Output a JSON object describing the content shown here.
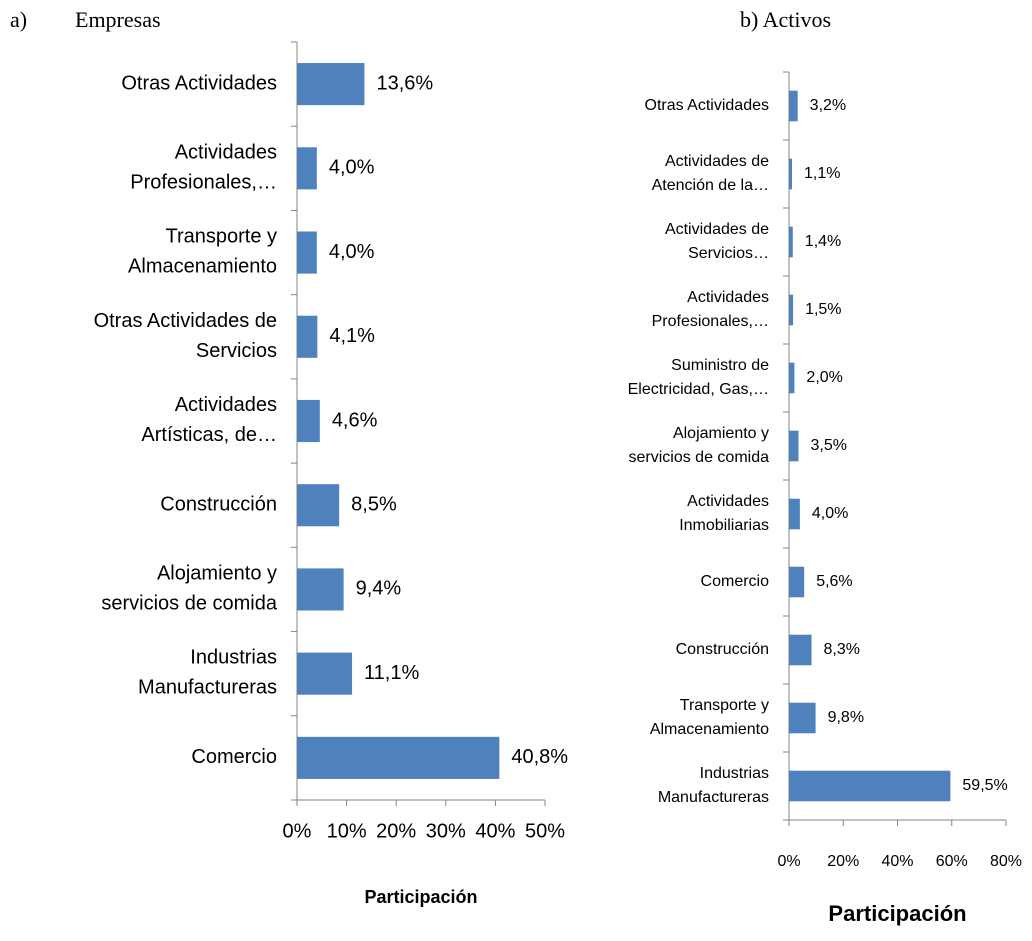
{
  "chart_data": [
    {
      "type": "bar",
      "panel": "a)",
      "title": "Empresas",
      "xlabel": "Participación",
      "color": "#4f81bd",
      "categories": [
        "Otras Actividades",
        "Actividades\nProfesionales,…",
        "Transporte y\nAlmacenamiento",
        "Otras Actividades de\nServicios",
        "Actividades\nArtísticas, de…",
        "Construcción",
        "Alojamiento y\nservicios de comida",
        "Industrias\nManufactureras",
        "Comercio"
      ],
      "values": [
        13.6,
        4.0,
        4.0,
        4.1,
        4.6,
        8.5,
        9.4,
        11.1,
        40.8
      ],
      "value_labels": [
        "13,6%",
        "4,0%",
        "4,0%",
        "4,1%",
        "4,6%",
        "8,5%",
        "9,4%",
        "11,1%",
        "40,8%"
      ],
      "xlim": [
        0,
        50
      ],
      "xticks": [
        {
          "value": 0,
          "label": "0%"
        },
        {
          "value": 10,
          "label": "10%"
        },
        {
          "value": 20,
          "label": "20%"
        },
        {
          "value": 30,
          "label": "30%"
        },
        {
          "value": 40,
          "label": "40%"
        },
        {
          "value": 50,
          "label": "50%"
        }
      ]
    },
    {
      "type": "bar",
      "title": "b) Activos",
      "xlabel": "Participación",
      "color": "#4f81bd",
      "categories": [
        "Otras Actividades",
        "Actividades de\nAtención de la…",
        "Actividades de\nServicios…",
        "Actividades\nProfesionales,…",
        "Suministro de\nElectricidad, Gas,…",
        "Alojamiento y\nservicios de comida",
        "Actividades\nInmobiliarias",
        "Comercio",
        "Construcción",
        "Transporte y\nAlmacenamiento",
        "Industrias\nManufactureras"
      ],
      "values": [
        3.2,
        1.1,
        1.4,
        1.5,
        2.0,
        3.5,
        4.0,
        5.6,
        8.3,
        9.8,
        59.5
      ],
      "value_labels": [
        "3,2%",
        "1,1%",
        "1,4%",
        "1,5%",
        "2,0%",
        "3,5%",
        "4,0%",
        "5,6%",
        "8,3%",
        "9,8%",
        "59,5%"
      ],
      "xlim": [
        0,
        80
      ],
      "xticks": [
        {
          "value": 0,
          "label": "0%"
        },
        {
          "value": 20,
          "label": "20%"
        },
        {
          "value": 40,
          "label": "40%"
        },
        {
          "value": 60,
          "label": "60%"
        },
        {
          "value": 80,
          "label": "80%"
        }
      ]
    }
  ]
}
